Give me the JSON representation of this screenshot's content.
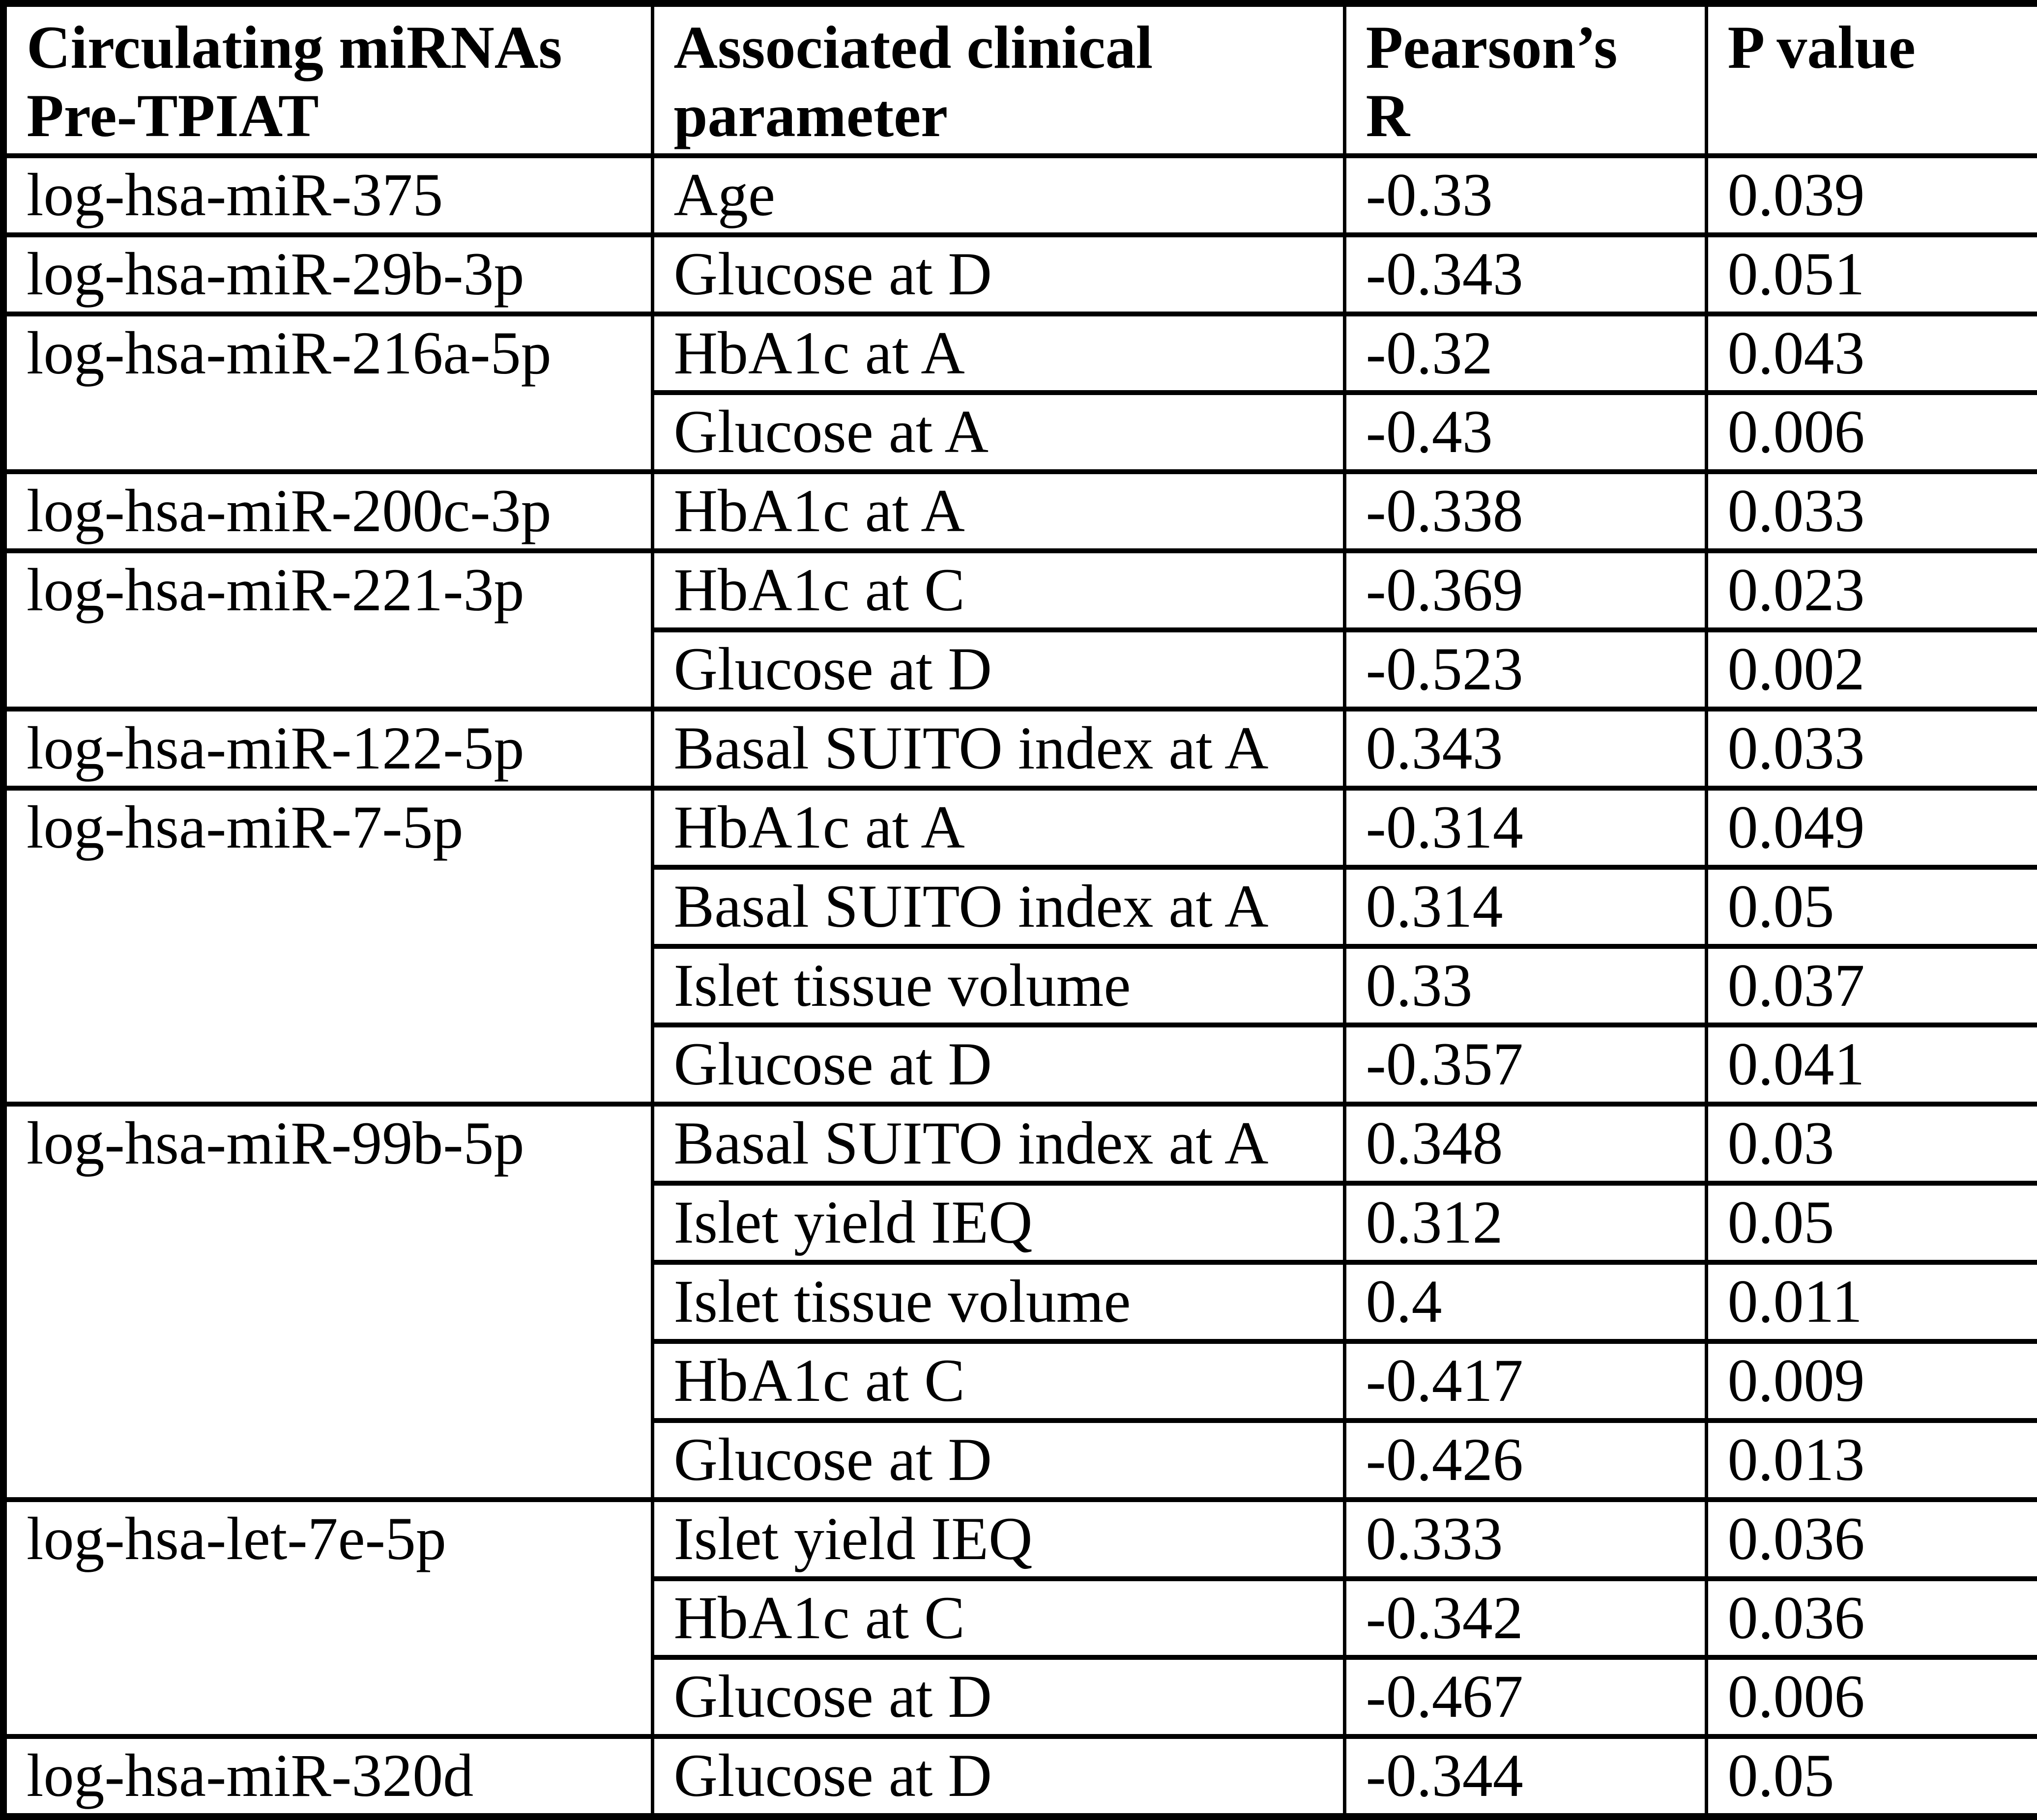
{
  "page": {
    "background_color": "#ffffff",
    "text_color": "#000000",
    "border_color": "#000000"
  },
  "table": {
    "headers": {
      "mirna": "Circulating miRNAs\nPre-TPIAT",
      "parameter": "Associated clinical\nparameter",
      "pearsons_r": "Pearson’s\nR",
      "p_value": "P value"
    },
    "groups": [
      {
        "mirna": "log-hsa-miR-375",
        "rows": [
          {
            "parameter": "Age",
            "r": "-0.33",
            "p": "0.039"
          }
        ]
      },
      {
        "mirna": "log-hsa-miR-29b-3p",
        "rows": [
          {
            "parameter": "Glucose at D",
            "r": "-0.343",
            "p": "0.051"
          }
        ]
      },
      {
        "mirna": "log-hsa-miR-216a-5p",
        "rows": [
          {
            "parameter": "HbA1c at A",
            "r": "-0.32",
            "p": "0.043"
          },
          {
            "parameter": "Glucose at A",
            "r": "-0.43",
            "p": "0.006"
          }
        ]
      },
      {
        "mirna": "log-hsa-miR-200c-3p",
        "rows": [
          {
            "parameter": "HbA1c at A",
            "r": "-0.338",
            "p": "0.033"
          }
        ]
      },
      {
        "mirna": "log-hsa-miR-221-3p",
        "rows": [
          {
            "parameter": "HbA1c at C",
            "r": "-0.369",
            "p": "0.023"
          },
          {
            "parameter": "Glucose at D",
            "r": "-0.523",
            "p": "0.002"
          }
        ]
      },
      {
        "mirna": "log-hsa-miR-122-5p",
        "rows": [
          {
            "parameter": "Basal SUITO index at A",
            "r": "0.343",
            "p": "0.033"
          }
        ]
      },
      {
        "mirna": "log-hsa-miR-7-5p",
        "rows": [
          {
            "parameter": "HbA1c at A",
            "r": "-0.314",
            "p": "0.049"
          },
          {
            "parameter": "Basal SUITO index at A",
            "r": "0.314",
            "p": "0.05"
          },
          {
            "parameter": "Islet tissue volume",
            "r": "0.33",
            "p": "0.037"
          },
          {
            "parameter": "Glucose at D",
            "r": "-0.357",
            "p": "0.041"
          }
        ]
      },
      {
        "mirna": "log-hsa-miR-99b-5p",
        "rows": [
          {
            "parameter": "Basal SUITO index at A",
            "r": "0.348",
            "p": "0.03"
          },
          {
            "parameter": "Islet yield IEQ",
            "r": "0.312",
            "p": "0.05"
          },
          {
            "parameter": "Islet tissue volume",
            "r": "0.4",
            "p": "0.011"
          },
          {
            "parameter": "HbA1c at C",
            "r": "-0.417",
            "p": "0.009"
          },
          {
            "parameter": "Glucose at D",
            "r": "-0.426",
            "p": "0.013"
          }
        ]
      },
      {
        "mirna": "log-hsa-let-7e-5p",
        "rows": [
          {
            "parameter": "Islet yield IEQ",
            "r": "0.333",
            "p": "0.036"
          },
          {
            "parameter": "HbA1c at C",
            "r": "-0.342",
            "p": "0.036"
          },
          {
            "parameter": "Glucose at D",
            "r": "-0.467",
            "p": "0.006"
          }
        ]
      },
      {
        "mirna": "log-hsa-miR-320d",
        "rows": [
          {
            "parameter": "Glucose at D",
            "r": "-0.344",
            "p": "0.05"
          }
        ]
      }
    ]
  }
}
